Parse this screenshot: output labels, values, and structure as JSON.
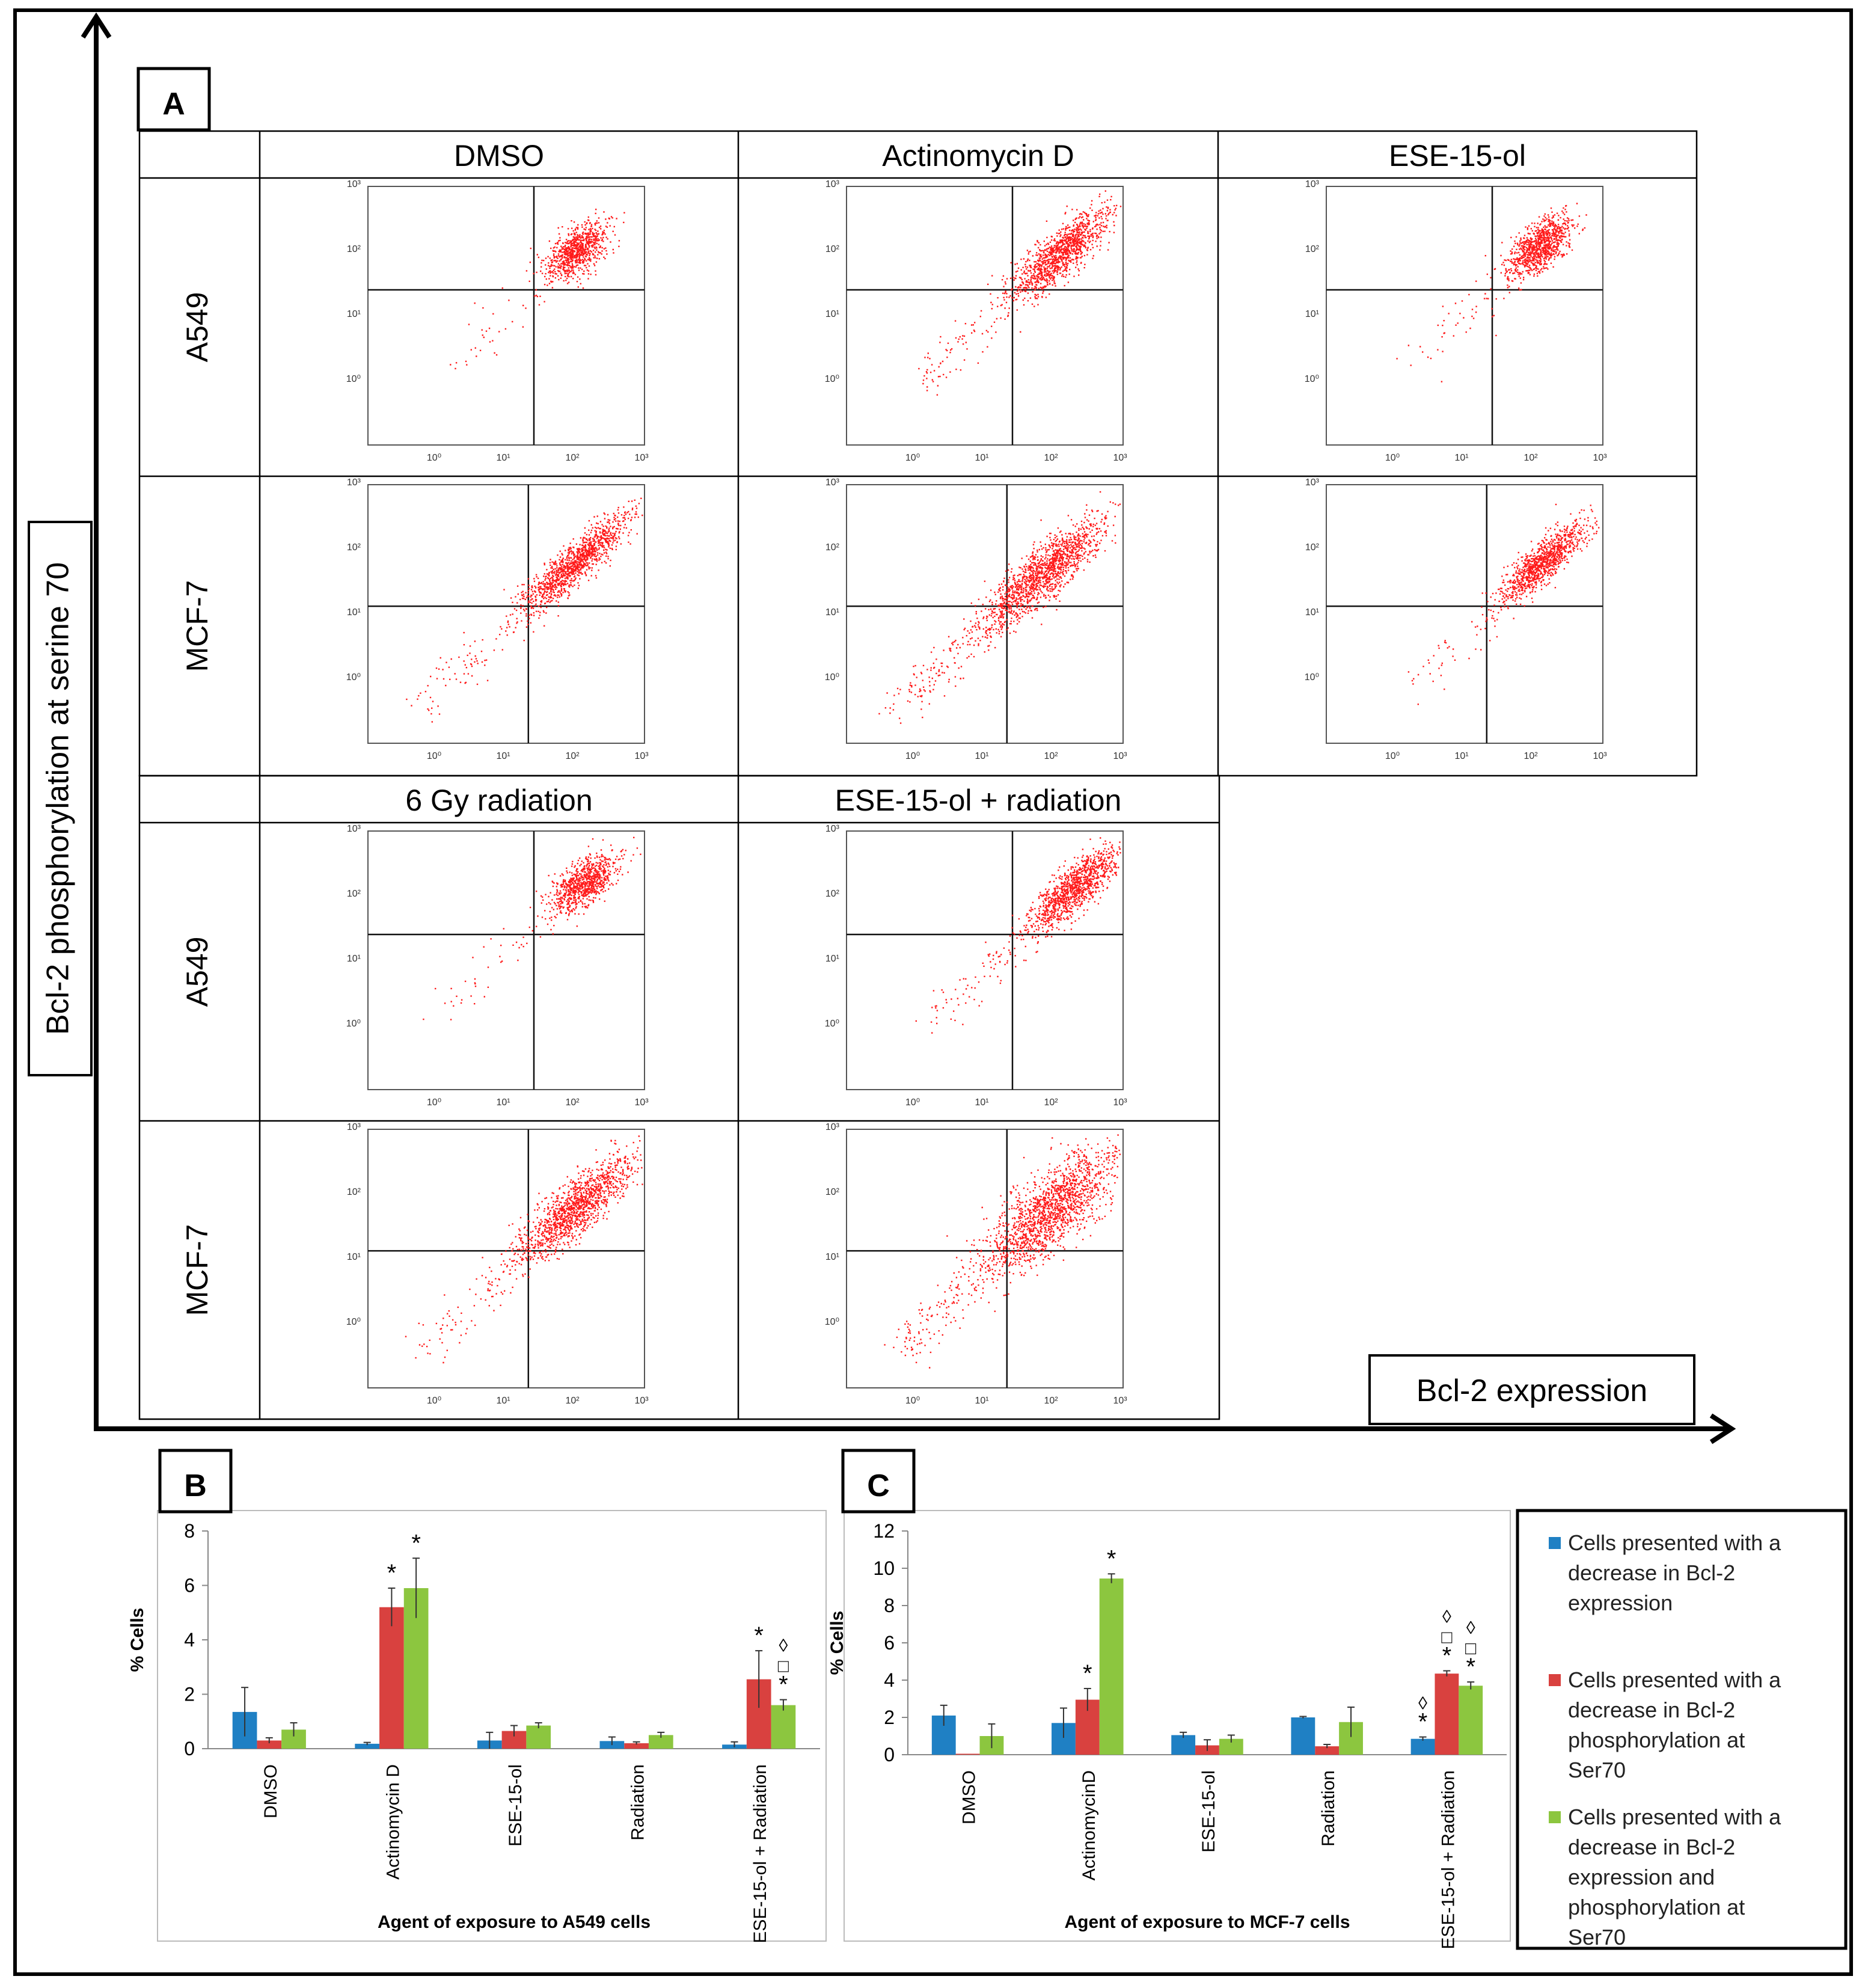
{
  "panel_a": {
    "label": "A",
    "y_axis_label": "Bcl-2 phosphorylation at serine 70",
    "x_axis_label": "Bcl-2 expression",
    "tick_labels": [
      "10⁰",
      "10¹",
      "10²",
      "10³"
    ],
    "headers_row1": [
      "DMSO",
      "Actinomycin D",
      "ESE-15-ol"
    ],
    "headers_row2": [
      "6 Gy radiation",
      "ESE-15-ol + radiation"
    ],
    "row_labels": [
      "A549",
      "MCF-7",
      "A549",
      "MCF-7"
    ]
  },
  "colors": {
    "blue": "#1f80c4",
    "red": "#d9413f",
    "green": "#8cc63f",
    "dot": "#ff1a1a"
  },
  "legend": [
    "Cells presented with a decrease  in Bcl-2 expression",
    "Cells presented with a decrease in Bcl-2 phosphorylation at Ser70",
    "Cells presented with a decrease in Bcl-2 expression and phosphorylation at Ser70"
  ],
  "chart_data": [
    {
      "type": "bar",
      "label": "B",
      "xlabel": "Agent of exposure to A549 cells",
      "ylabel": "% Cells",
      "ylim": [
        0,
        8
      ],
      "yticks": [
        "0",
        "2",
        "4",
        "6",
        "8"
      ],
      "categories": [
        "DMSO",
        "Actinomycin D",
        "ESE-15-ol",
        "Radiation",
        "ESE-15-ol + Radiation"
      ],
      "series": [
        {
          "name": "Cells presented with a decrease  in Bcl-2 expression",
          "values": [
            1.35,
            0.18,
            0.3,
            0.28,
            0.15
          ],
          "errors": [
            0.9,
            0.05,
            0.3,
            0.15,
            0.1
          ]
        },
        {
          "name": "Cells presented with a decrease in Bcl-2 phosphorylation at Ser70",
          "values": [
            0.3,
            5.2,
            0.65,
            0.2,
            2.55
          ],
          "errors": [
            0.1,
            0.7,
            0.2,
            0.05,
            1.05
          ]
        },
        {
          "name": "Cells presented with a decrease in Bcl-2 expression and phosphorylation at Ser70",
          "values": [
            0.7,
            5.9,
            0.85,
            0.5,
            1.6
          ],
          "errors": [
            0.25,
            1.1,
            0.1,
            0.1,
            0.2
          ]
        }
      ],
      "significance": [
        {
          "category": 1,
          "series": 1,
          "marks": "*"
        },
        {
          "category": 1,
          "series": 2,
          "marks": "*"
        },
        {
          "category": 4,
          "series": 1,
          "marks": "*"
        },
        {
          "category": 4,
          "series": 2,
          "marks": "*□◊"
        }
      ]
    },
    {
      "type": "bar",
      "label": "C",
      "xlabel": "Agent of exposure to MCF-7 cells",
      "ylabel": "% Cells",
      "ylim": [
        0,
        12
      ],
      "yticks": [
        "0",
        "2",
        "4",
        "6",
        "8",
        "10",
        "12"
      ],
      "categories": [
        "DMSO",
        "ActinomycinD",
        "ESE-15-ol",
        "Radiation",
        "ESE-15-ol + Radiation"
      ],
      "series": [
        {
          "name": "Cells presented with a decrease  in Bcl-2 expression",
          "values": [
            2.1,
            1.7,
            1.05,
            2.0,
            0.85
          ],
          "errors": [
            0.55,
            0.8,
            0.15,
            0.05,
            0.1
          ]
        },
        {
          "name": "Cells presented with a decrease in Bcl-2 phosphorylation at Ser70",
          "values": [
            0.05,
            2.95,
            0.5,
            0.45,
            4.35
          ],
          "errors": [
            0.0,
            0.6,
            0.3,
            0.1,
            0.15
          ]
        },
        {
          "name": "Cells presented with a decrease in Bcl-2 expression and phosphorylation at Ser70",
          "values": [
            1.0,
            9.45,
            0.85,
            1.75,
            3.7
          ],
          "errors": [
            0.65,
            0.25,
            0.2,
            0.8,
            0.2
          ]
        }
      ],
      "significance": [
        {
          "category": 1,
          "series": 1,
          "marks": "*"
        },
        {
          "category": 1,
          "series": 2,
          "marks": "*"
        },
        {
          "category": 4,
          "series": 0,
          "marks": "*◊"
        },
        {
          "category": 4,
          "series": 1,
          "marks": "*□◊"
        },
        {
          "category": 4,
          "series": 2,
          "marks": "*□◊"
        }
      ]
    }
  ]
}
